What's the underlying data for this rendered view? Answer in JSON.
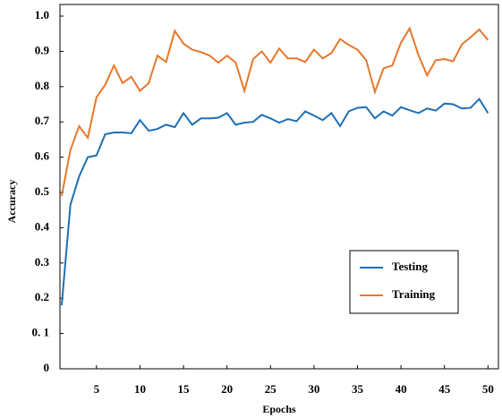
{
  "chart_data": {
    "type": "line",
    "x_label": "Epochs",
    "y_label": "Accuracy",
    "x": [
      1,
      2,
      3,
      4,
      5,
      6,
      7,
      8,
      9,
      10,
      11,
      12,
      13,
      14,
      15,
      16,
      17,
      18,
      19,
      20,
      21,
      22,
      23,
      24,
      25,
      26,
      27,
      28,
      29,
      30,
      31,
      32,
      33,
      34,
      35,
      36,
      37,
      38,
      39,
      40,
      41,
      42,
      43,
      44,
      45,
      46,
      47,
      48,
      49,
      50
    ],
    "series": [
      {
        "name": "Testing",
        "color": "#1f6fb4",
        "values": [
          0.18,
          0.465,
          0.545,
          0.6,
          0.605,
          0.665,
          0.67,
          0.67,
          0.668,
          0.705,
          0.675,
          0.68,
          0.692,
          0.685,
          0.725,
          0.692,
          0.71,
          0.71,
          0.712,
          0.725,
          0.692,
          0.698,
          0.7,
          0.72,
          0.71,
          0.698,
          0.708,
          0.702,
          0.73,
          0.718,
          0.705,
          0.725,
          0.688,
          0.73,
          0.74,
          0.742,
          0.71,
          0.73,
          0.718,
          0.742,
          0.733,
          0.725,
          0.738,
          0.732,
          0.752,
          0.75,
          0.738,
          0.74,
          0.765,
          0.725
        ]
      },
      {
        "name": "Training",
        "color": "#e8782a",
        "values": [
          0.49,
          0.62,
          0.688,
          0.655,
          0.77,
          0.805,
          0.86,
          0.81,
          0.828,
          0.788,
          0.81,
          0.888,
          0.87,
          0.958,
          0.922,
          0.905,
          0.898,
          0.888,
          0.868,
          0.888,
          0.868,
          0.788,
          0.878,
          0.9,
          0.868,
          0.908,
          0.88,
          0.88,
          0.87,
          0.905,
          0.88,
          0.895,
          0.935,
          0.918,
          0.905,
          0.875,
          0.785,
          0.852,
          0.86,
          0.925,
          0.965,
          0.89,
          0.832,
          0.875,
          0.878,
          0.872,
          0.92,
          0.94,
          0.962,
          0.932
        ]
      }
    ],
    "xlim": [
      0.8,
      51.2
    ],
    "ylim": [
      0,
      1.033
    ],
    "xticks": [
      5,
      10,
      15,
      20,
      25,
      30,
      35,
      40,
      45,
      50
    ],
    "yticks": [
      0,
      {
        "value": 0.1,
        "label": "0. 1"
      },
      0.2,
      0.3,
      0.4,
      0.5,
      0.6,
      0.7,
      0.8,
      0.9,
      {
        "value": 1.0,
        "label": "1.0"
      }
    ]
  }
}
